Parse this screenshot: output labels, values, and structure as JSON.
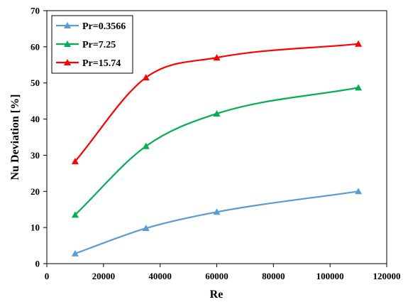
{
  "chart_data": {
    "type": "line",
    "title": "",
    "xlabel": "Re",
    "ylabel": "Nu Deviation [%]",
    "xlim": [
      0,
      120000
    ],
    "ylim": [
      0,
      70
    ],
    "xticks": [
      0,
      20000,
      40000,
      60000,
      80000,
      100000,
      120000
    ],
    "yticks": [
      0,
      10,
      20,
      30,
      40,
      50,
      60,
      70
    ],
    "grid": false,
    "legend_position": "top-left",
    "marker": "triangle",
    "smooth": true,
    "x": [
      10000,
      35000,
      60000,
      110000
    ],
    "series": [
      {
        "name": "Pr=0.3566",
        "color": "#5B9BD5",
        "values": [
          2.8,
          9.8,
          14.3,
          20.0
        ]
      },
      {
        "name": "Pr=7.25",
        "color": "#00B050",
        "values": [
          13.5,
          32.5,
          41.5,
          48.7
        ]
      },
      {
        "name": "Pr=15.74",
        "color": "#FF0000",
        "values": [
          28.3,
          51.5,
          57.0,
          60.8
        ]
      }
    ]
  }
}
